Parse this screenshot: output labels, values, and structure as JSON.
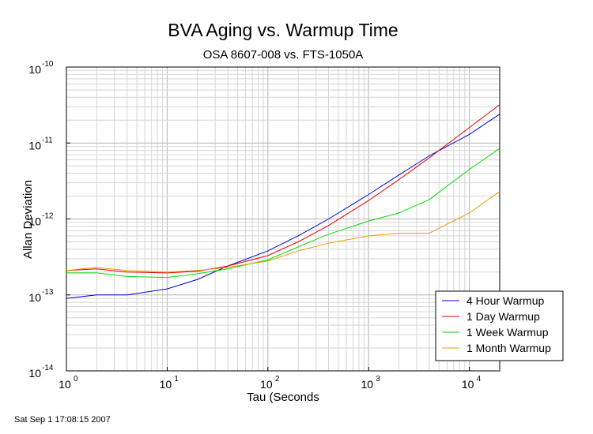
{
  "chart_data": {
    "type": "line",
    "title": "BVA Aging vs. Warmup Time",
    "subtitle": "OSA 8607-008 vs. FTS-1050A",
    "xlabel": "Tau (Seconds",
    "ylabel": "Allan Deviation",
    "x_scale": "log",
    "y_scale": "log",
    "xlim": [
      1,
      20000
    ],
    "ylim": [
      1e-14,
      1e-10
    ],
    "grid": true,
    "legend_position": "bottom-right",
    "x_ticks": [
      {
        "base": "10",
        "exp": "0",
        "value": 1
      },
      {
        "base": "10",
        "exp": "1",
        "value": 10
      },
      {
        "base": "10",
        "exp": "2",
        "value": 100
      },
      {
        "base": "10",
        "exp": "3",
        "value": 1000
      },
      {
        "base": "10",
        "exp": "4",
        "value": 10000
      }
    ],
    "y_ticks": [
      {
        "base": "10",
        "exp": "-10",
        "value": 1e-10
      },
      {
        "base": "10",
        "exp": "-11",
        "value": 1e-11
      },
      {
        "base": "10",
        "exp": "-12",
        "value": 1e-12
      },
      {
        "base": "10",
        "exp": "-13",
        "value": 1e-13
      },
      {
        "base": "10",
        "exp": "-14",
        "value": 1e-14
      }
    ],
    "series": [
      {
        "name": "4 Hour Warmup",
        "color": "#0000cc",
        "x": [
          1,
          2,
          4,
          10,
          20,
          40,
          100,
          200,
          400,
          1000,
          2000,
          4000,
          10000,
          20000
        ],
        "y": [
          9e-14,
          1e-13,
          1e-13,
          1.2e-13,
          1.6e-13,
          2.4e-13,
          3.8e-13,
          6e-13,
          1e-12,
          2.1e-12,
          3.8e-12,
          6.8e-12,
          1.3e-11,
          2.4e-11
        ]
      },
      {
        "name": "1 Day Warmup",
        "color": "#dd0000",
        "x": [
          1,
          2,
          4,
          10,
          20,
          40,
          100,
          200,
          400,
          1000,
          2000,
          4000,
          10000,
          20000
        ],
        "y": [
          2.1e-13,
          2.2e-13,
          2e-13,
          1.95e-13,
          2.05e-13,
          2.4e-13,
          3.3e-13,
          5e-13,
          8.2e-13,
          1.75e-12,
          3.3e-12,
          6.4e-12,
          1.6e-11,
          3.2e-11
        ]
      },
      {
        "name": "1 Week Warmup",
        "color": "#00dd00",
        "x": [
          1,
          2,
          4,
          10,
          20,
          40,
          100,
          200,
          400,
          1000,
          2000,
          4000,
          10000,
          20000
        ],
        "y": [
          1.95e-13,
          1.95e-13,
          1.75e-13,
          1.7e-13,
          1.9e-13,
          2.2e-13,
          2.9e-13,
          4.3e-13,
          6.3e-13,
          9.4e-13,
          1.2e-12,
          1.8e-12,
          4.5e-12,
          8.5e-12
        ]
      },
      {
        "name": "1 Month Warmup",
        "color": "#ee9900",
        "x": [
          1,
          2,
          4,
          10,
          20,
          40,
          100,
          200,
          400,
          1000,
          2000,
          4000,
          10000,
          20000
        ],
        "y": [
          2.1e-13,
          2.3e-13,
          2.1e-13,
          2e-13,
          2.1e-13,
          2.3e-13,
          2.8e-13,
          3.8e-13,
          4.8e-13,
          6e-13,
          6.5e-13,
          6.5e-13,
          1.2e-12,
          2.3e-12
        ]
      }
    ]
  },
  "footer": {
    "timestamp": "Sat Sep  1 17:08:15 2007"
  }
}
